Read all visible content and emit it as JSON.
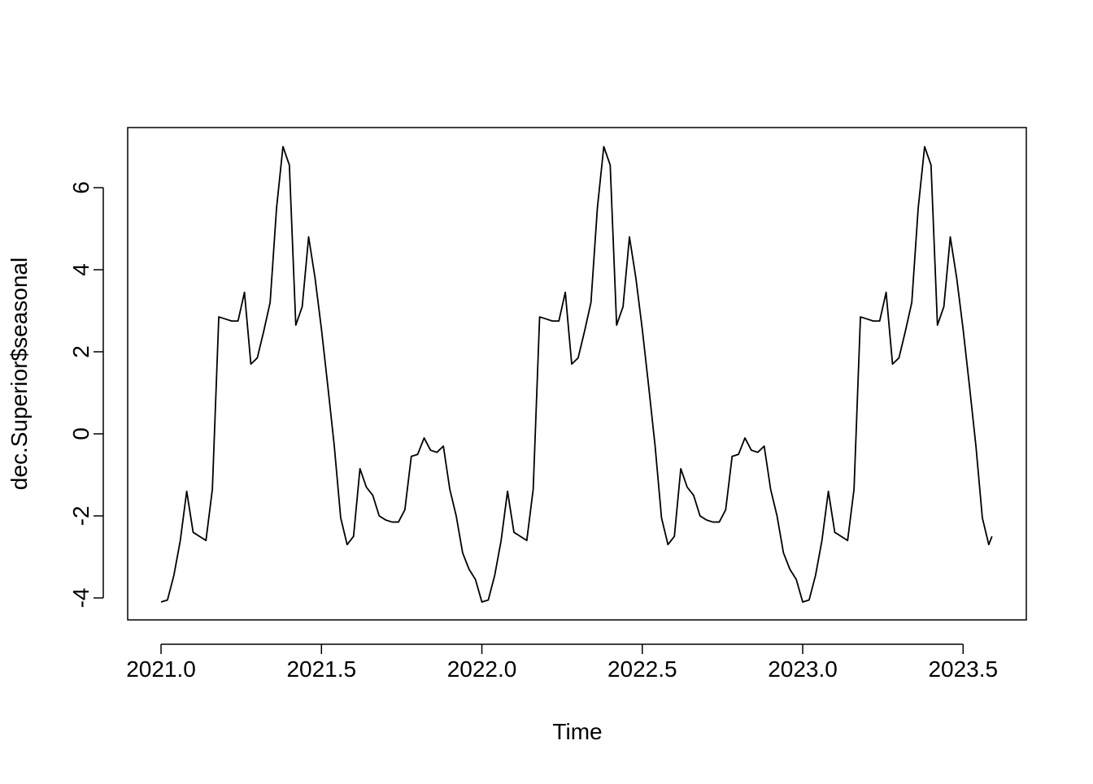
{
  "chart_data": {
    "type": "line",
    "x": [
      2021,
      2021.02,
      2021.04,
      2021.06,
      2021.08,
      2021.1,
      2021.12,
      2021.14,
      2021.16,
      2021.18,
      2021.2,
      2021.22,
      2021.24,
      2021.26,
      2021.28,
      2021.3,
      2021.32,
      2021.34,
      2021.36,
      2021.38,
      2021.4,
      2021.42,
      2021.44,
      2021.46,
      2021.48,
      2021.5,
      2021.52,
      2021.54,
      2021.56,
      2021.58,
      2021.6,
      2021.62,
      2021.64,
      2021.66,
      2021.68,
      2021.7,
      2021.72,
      2021.74,
      2021.76,
      2021.78,
      2021.8,
      2021.82,
      2021.84,
      2021.86,
      2021.88,
      2021.9,
      2021.92,
      2021.94,
      2021.96,
      2021.98,
      2022,
      2022.02,
      2022.04,
      2022.06,
      2022.08,
      2022.1,
      2022.12,
      2022.14,
      2022.16,
      2022.18,
      2022.2,
      2022.22,
      2022.24,
      2022.26,
      2022.28,
      2022.3,
      2022.32,
      2022.34,
      2022.36,
      2022.38,
      2022.4,
      2022.42,
      2022.44,
      2022.46,
      2022.48,
      2022.5,
      2022.52,
      2022.54,
      2022.56,
      2022.58,
      2022.6,
      2022.62,
      2022.64,
      2022.66,
      2022.68,
      2022.7,
      2022.72,
      2022.74,
      2022.76,
      2022.78,
      2022.8,
      2022.82,
      2022.84,
      2022.86,
      2022.88,
      2022.9,
      2022.92,
      2022.94,
      2022.96,
      2022.98,
      2023,
      2023.02,
      2023.04,
      2023.06,
      2023.08,
      2023.1,
      2023.12,
      2023.14,
      2023.16,
      2023.18,
      2023.2,
      2023.22,
      2023.24,
      2023.26,
      2023.28,
      2023.3,
      2023.32,
      2023.34,
      2023.36,
      2023.38,
      2023.4,
      2023.42,
      2023.44,
      2023.46,
      2023.48,
      2023.5,
      2023.52,
      2023.54,
      2023.56,
      2023.58,
      2023.59
    ],
    "series": [
      {
        "color": "#000000",
        "values": [
          -4.1,
          -4.05,
          -3.45,
          -2.6,
          -1.4,
          -2.4,
          -2.5,
          -2.6,
          -1.35,
          2.85,
          2.8,
          2.75,
          2.75,
          3.45,
          1.7,
          1.85,
          2.5,
          3.2,
          5.5,
          7.0,
          6.55,
          2.65,
          3.1,
          4.8,
          3.8,
          2.55,
          1.15,
          -0.3,
          -2.05,
          -2.7,
          -2.5,
          -0.85,
          -1.3,
          -1.5,
          -2.0,
          -2.1,
          -2.15,
          -2.15,
          -1.85,
          -0.55,
          -0.5,
          -0.1,
          -0.4,
          -0.45,
          -0.3,
          -1.35,
          -2.0,
          -2.9,
          -3.3,
          -3.55,
          -4.1,
          -4.05,
          -3.45,
          -2.6,
          -1.4,
          -2.4,
          -2.5,
          -2.6,
          -1.35,
          2.85,
          2.8,
          2.75,
          2.75,
          3.45,
          1.7,
          1.85,
          2.5,
          3.2,
          5.5,
          7.0,
          6.55,
          2.65,
          3.1,
          4.8,
          3.8,
          2.55,
          1.15,
          -0.3,
          -2.05,
          -2.7,
          -2.5,
          -0.85,
          -1.3,
          -1.5,
          -2.0,
          -2.1,
          -2.15,
          -2.15,
          -1.85,
          -0.55,
          -0.5,
          -0.1,
          -0.4,
          -0.45,
          -0.3,
          -1.35,
          -2.0,
          -2.9,
          -3.3,
          -3.55,
          -4.1,
          -4.05,
          -3.45,
          -2.6,
          -1.4,
          -2.4,
          -2.5,
          -2.6,
          -1.35,
          2.85,
          2.8,
          2.75,
          2.75,
          3.45,
          1.7,
          1.85,
          2.5,
          3.2,
          5.5,
          7.0,
          6.55,
          2.65,
          3.1,
          4.8,
          3.8,
          2.55,
          1.15,
          -0.3,
          -2.05,
          -2.7,
          -2.5
        ]
      }
    ],
    "xlabel": "Time",
    "ylabel": "dec.Superior$seasonal",
    "xlim": [
      2020.896,
      2023.697
    ],
    "ylim": [
      -4.535,
      7.465
    ],
    "xticks": [
      {
        "value": 2021,
        "label": "2021.0"
      },
      2021.5,
      {
        "value": 2022,
        "label": "2022.0"
      },
      2022.5,
      {
        "value": 2023,
        "label": "2023.0"
      },
      2023.5
    ],
    "yticks": [
      -4,
      -2,
      0,
      2,
      4,
      6
    ]
  }
}
